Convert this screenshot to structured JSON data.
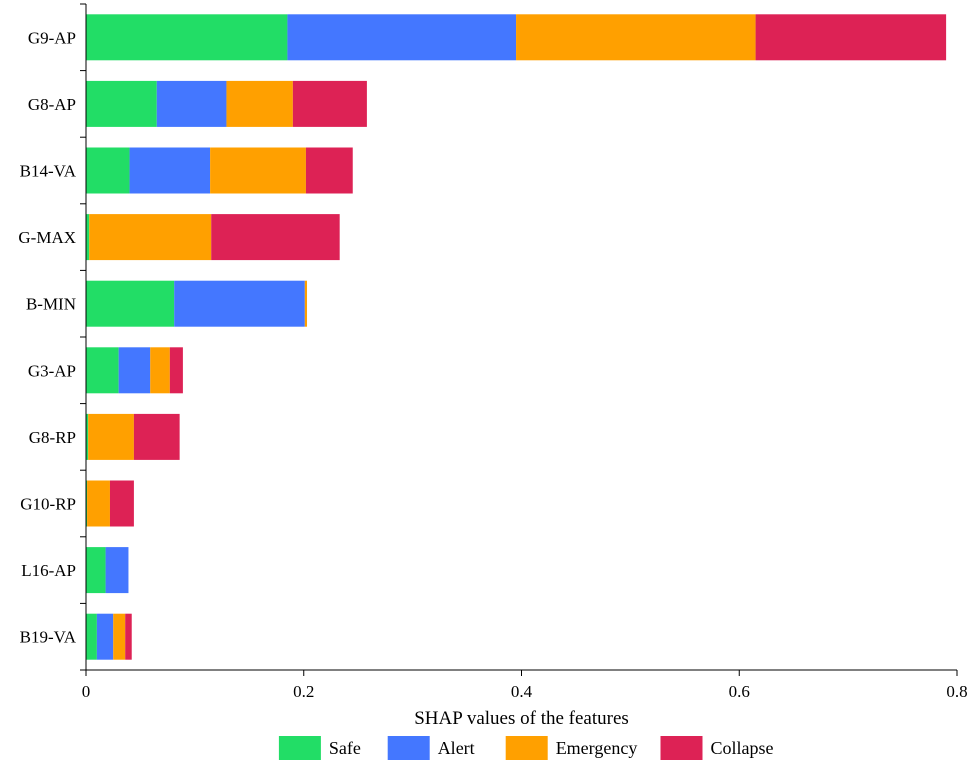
{
  "chart_data": {
    "type": "bar",
    "orientation": "horizontal",
    "stacked": true,
    "categories": [
      "G9-AP",
      "G8-AP",
      "B14-VA",
      "G-MAX",
      "B-MIN",
      "G3-AP",
      "G8-RP",
      "G10-RP",
      "L16-AP",
      "B19-VA"
    ],
    "series": [
      {
        "name": "Safe",
        "color": "#22dd66",
        "values": [
          0.185,
          0.065,
          0.04,
          0.003,
          0.081,
          0.03,
          0.002,
          0.001,
          0.018,
          0.01
        ]
      },
      {
        "name": "Alert",
        "color": "#4477ff",
        "values": [
          0.21,
          0.064,
          0.074,
          0.0,
          0.12,
          0.029,
          0.0,
          0.0,
          0.021,
          0.015
        ]
      },
      {
        "name": "Emergency",
        "color": "#ffa000",
        "values": [
          0.22,
          0.061,
          0.088,
          0.112,
          0.002,
          0.018,
          0.042,
          0.021,
          0.0,
          0.011
        ]
      },
      {
        "name": "Collapse",
        "color": "#dd2255",
        "values": [
          0.175,
          0.068,
          0.043,
          0.118,
          0.0,
          0.012,
          0.042,
          0.022,
          0.0,
          0.006
        ]
      }
    ],
    "xlabel": "SHAP values of the features",
    "ylabel": "",
    "xlim": [
      0,
      0.8
    ],
    "xticks": [
      "0",
      "0.2",
      "0.4",
      "0.6",
      "0.8"
    ],
    "grid": false,
    "legend_position": "bottom"
  }
}
